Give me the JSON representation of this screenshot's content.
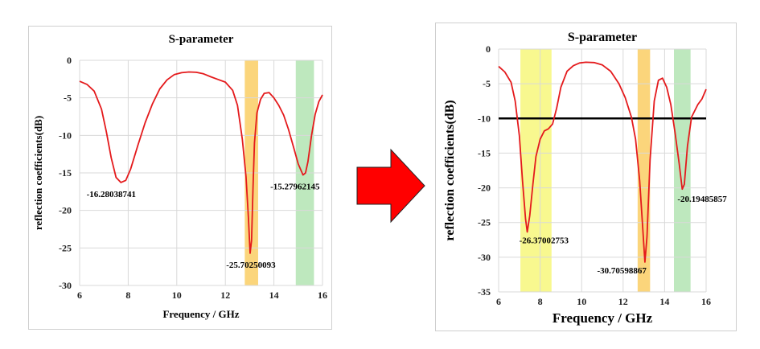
{
  "chart_data": [
    {
      "type": "line",
      "title": "S-parameter",
      "xlabel": "Frequency / GHz",
      "ylabel": "reflection coefficients(dB)",
      "xlim": [
        6,
        16
      ],
      "ylim": [
        -30,
        0
      ],
      "xticks": [
        6,
        8,
        10,
        12,
        14,
        16
      ],
      "yticks": [
        0,
        -5,
        -10,
        -15,
        -20,
        -25,
        -30
      ],
      "grid": true,
      "bands": [
        {
          "x0": 12.8,
          "x1": 13.35,
          "color": "#f9c74f"
        },
        {
          "x0": 14.9,
          "x1": 15.65,
          "color": "#a8e0a8"
        }
      ],
      "series": [
        {
          "color": "#e41a1c",
          "x": [
            6.0,
            6.3,
            6.6,
            6.9,
            7.1,
            7.3,
            7.5,
            7.7,
            7.9,
            8.1,
            8.4,
            8.7,
            9.0,
            9.3,
            9.6,
            9.9,
            10.2,
            10.5,
            10.8,
            11.1,
            11.4,
            11.7,
            12.0,
            12.3,
            12.5,
            12.7,
            12.85,
            12.95,
            13.02,
            13.08,
            13.14,
            13.2,
            13.3,
            13.45,
            13.6,
            13.8,
            14.0,
            14.2,
            14.4,
            14.6,
            14.8,
            15.0,
            15.2,
            15.3,
            15.4,
            15.55,
            15.7,
            15.85,
            16.0
          ],
          "y": [
            -2.8,
            -3.2,
            -4.1,
            -6.5,
            -9.5,
            -13.0,
            -15.6,
            -16.28,
            -16.0,
            -14.5,
            -11.3,
            -8.3,
            -5.8,
            -3.8,
            -2.6,
            -1.9,
            -1.65,
            -1.55,
            -1.6,
            -1.8,
            -2.2,
            -2.55,
            -2.9,
            -4.0,
            -6.0,
            -10.5,
            -15.5,
            -21.0,
            -25.7,
            -24.0,
            -17.0,
            -11.0,
            -7.0,
            -5.2,
            -4.4,
            -4.3,
            -5.0,
            -6.0,
            -7.3,
            -9.2,
            -11.5,
            -13.8,
            -15.28,
            -15.0,
            -13.5,
            -10.0,
            -7.2,
            -5.5,
            -4.6
          ]
        }
      ],
      "annotations": [
        {
          "text": "-16.28038741",
          "x": 7.7,
          "y": -16.28
        },
        {
          "text": "-25.70250093",
          "x": 13.05,
          "y": -25.7
        },
        {
          "text": "-15.27962145",
          "x": 15.2,
          "y": -15.28
        }
      ]
    },
    {
      "type": "line",
      "title": "S-parameter",
      "xlabel": "Frequency / GHz",
      "ylabel": "reflection coefficients(dB)",
      "xlim": [
        6,
        16
      ],
      "ylim": [
        -35,
        0
      ],
      "xticks": [
        6,
        8,
        10,
        12,
        14,
        16
      ],
      "yticks": [
        0,
        -5,
        -10,
        -15,
        -20,
        -25,
        -30,
        -35
      ],
      "grid": true,
      "reference_line": -10,
      "bands": [
        {
          "x0": 7.05,
          "x1": 8.55,
          "color": "#f5f56a"
        },
        {
          "x0": 12.7,
          "x1": 13.3,
          "color": "#f9c74f"
        },
        {
          "x0": 14.45,
          "x1": 15.25,
          "color": "#a8e0a8"
        }
      ],
      "series": [
        {
          "color": "#e41a1c",
          "x": [
            6.0,
            6.3,
            6.6,
            6.8,
            7.0,
            7.15,
            7.3,
            7.38,
            7.5,
            7.65,
            7.8,
            8.0,
            8.2,
            8.4,
            8.6,
            8.8,
            9.0,
            9.3,
            9.6,
            9.9,
            10.2,
            10.6,
            11.0,
            11.4,
            11.8,
            12.1,
            12.4,
            12.6,
            12.8,
            12.95,
            13.05,
            13.15,
            13.3,
            13.5,
            13.7,
            13.9,
            14.1,
            14.3,
            14.5,
            14.7,
            14.85,
            14.95,
            15.1,
            15.3,
            15.6,
            15.8,
            16.0
          ],
          "y": [
            -2.5,
            -3.3,
            -4.8,
            -7.5,
            -12.5,
            -19.0,
            -24.5,
            -26.37,
            -24.0,
            -19.5,
            -15.5,
            -13.0,
            -11.8,
            -11.5,
            -10.8,
            -8.5,
            -5.5,
            -3.2,
            -2.4,
            -2.0,
            -1.9,
            -1.95,
            -2.3,
            -3.2,
            -5.0,
            -7.0,
            -9.8,
            -13.0,
            -19.0,
            -26.0,
            -30.7,
            -27.0,
            -16.0,
            -7.5,
            -4.5,
            -4.2,
            -5.5,
            -8.0,
            -12.0,
            -16.5,
            -20.19,
            -19.5,
            -14.0,
            -9.8,
            -8.0,
            -7.2,
            -5.8
          ]
        }
      ],
      "annotations": [
        {
          "text": "-26.37002753",
          "x": 7.38,
          "y": -26.37
        },
        {
          "text": "-30.70598867",
          "x": 13.05,
          "y": -30.7
        },
        {
          "text": "-20.19485857",
          "x": 14.85,
          "y": -20.19
        }
      ]
    }
  ]
}
